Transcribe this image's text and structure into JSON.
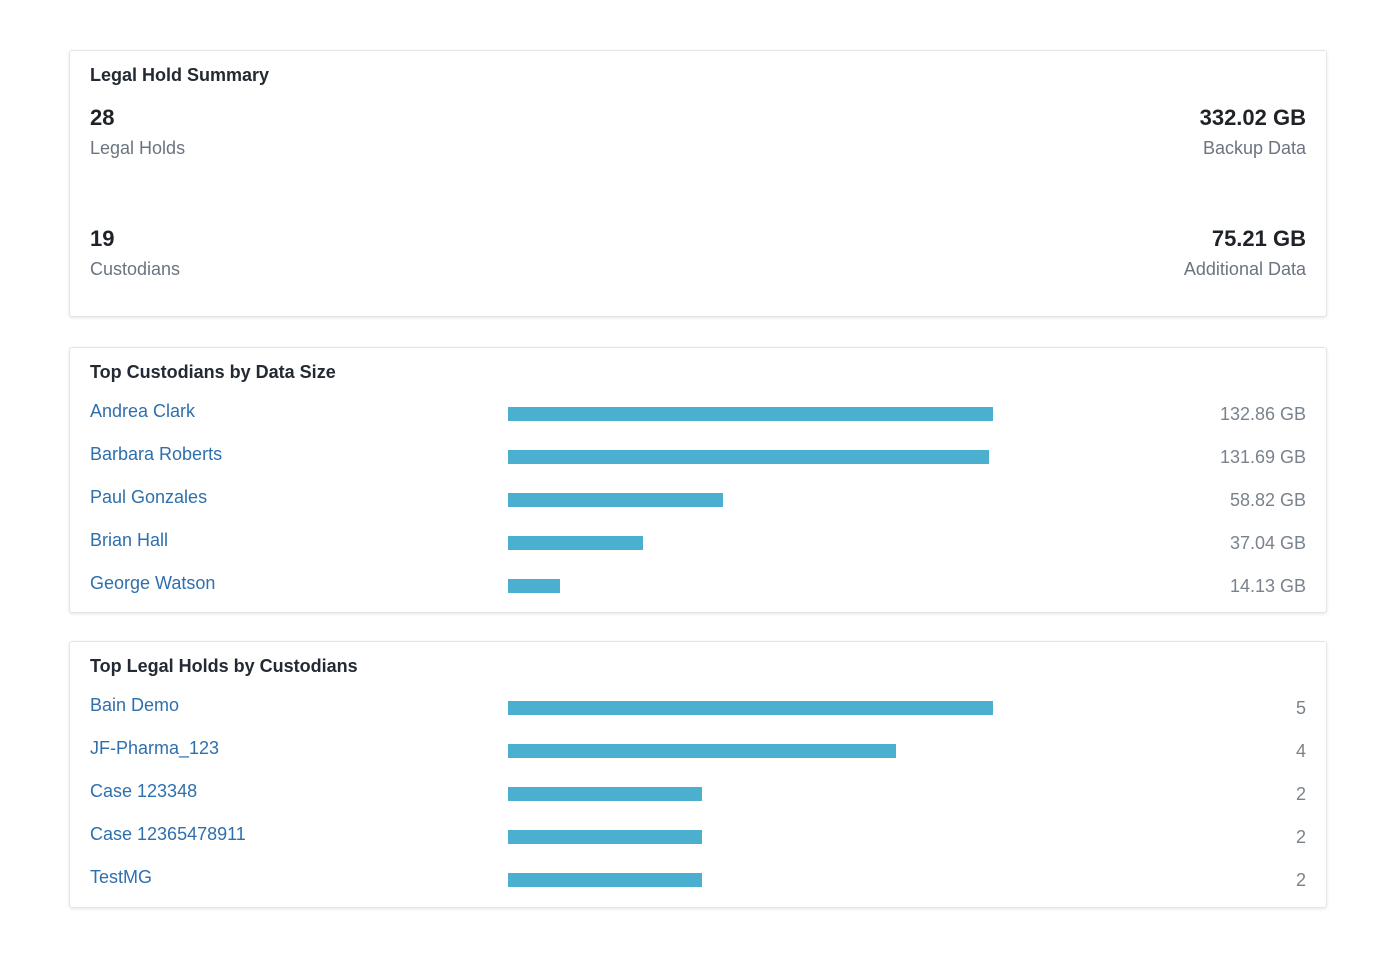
{
  "summary": {
    "title": "Legal Hold Summary",
    "legal_holds": {
      "value": "28",
      "label": "Legal Holds"
    },
    "backup_data": {
      "value": "332.02 GB",
      "label": "Backup Data"
    },
    "custodians": {
      "value": "19",
      "label": "Custodians"
    },
    "additional_data": {
      "value": "75.21 GB",
      "label": "Additional Data"
    }
  },
  "top_custodians": {
    "title": "Top Custodians by Data Size",
    "bar_color": "#4bb0cf",
    "max": 132.86,
    "rows": [
      {
        "name": "Andrea Clark",
        "value": 132.86,
        "label": "132.86 GB"
      },
      {
        "name": "Barbara Roberts",
        "value": 131.69,
        "label": "131.69 GB"
      },
      {
        "name": "Paul Gonzales",
        "value": 58.82,
        "label": "58.82 GB"
      },
      {
        "name": "Brian Hall",
        "value": 37.04,
        "label": "37.04 GB"
      },
      {
        "name": "George Watson",
        "value": 14.13,
        "label": "14.13 GB"
      }
    ]
  },
  "top_holds": {
    "title": "Top Legal Holds by Custodians",
    "bar_color": "#4bb0cf",
    "max": 5,
    "rows": [
      {
        "name": "Bain Demo",
        "value": 5,
        "label": "5"
      },
      {
        "name": "JF-Pharma_123",
        "value": 4,
        "label": "4"
      },
      {
        "name": "Case 123348",
        "value": 2,
        "label": "2"
      },
      {
        "name": "Case 12365478911",
        "value": 2,
        "label": "2"
      },
      {
        "name": "TestMG",
        "value": 2,
        "label": "2"
      }
    ]
  }
}
